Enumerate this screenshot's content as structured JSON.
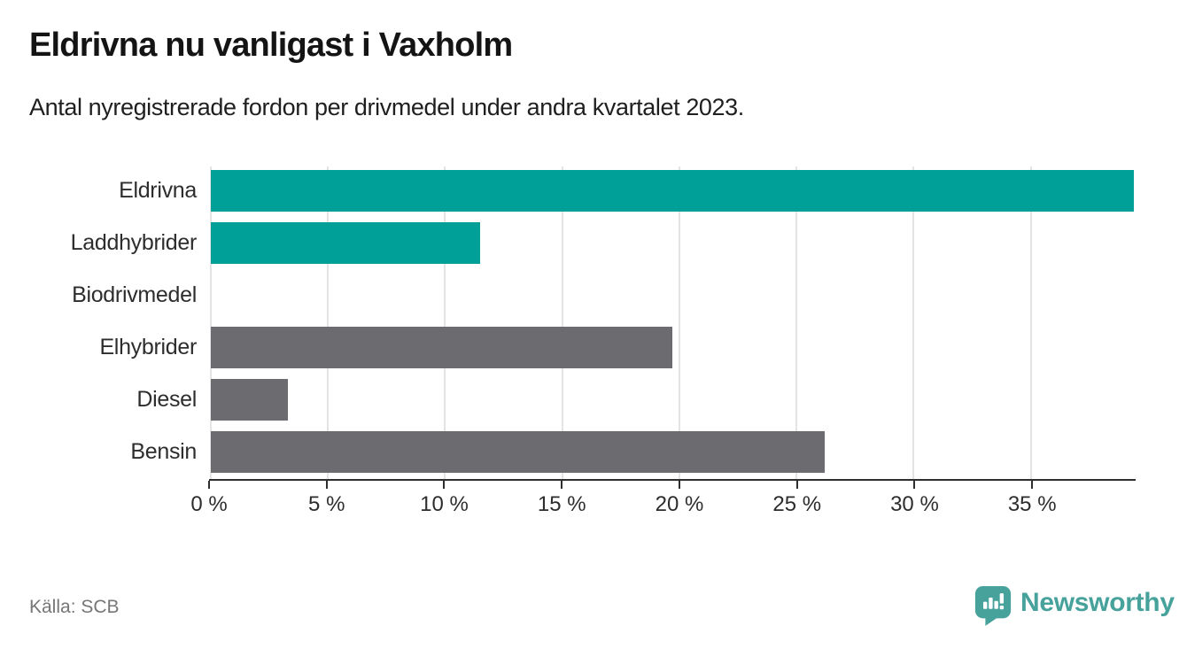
{
  "header": {
    "title": "Eldrivna nu vanligast i Vaxholm",
    "subtitle": "Antal nyregistrerade fordon per drivmedel under andra kvartalet 2023."
  },
  "footer": {
    "source": "Källa: SCB",
    "brand": "Newsworthy"
  },
  "colors": {
    "accent_teal": "#00a098",
    "neutral_gray": "#6b6b70",
    "brand_teal": "#47a29c",
    "gridline": "#e4e4e4",
    "axis": "#2f2f2f",
    "source_text": "#767676"
  },
  "chart_data": {
    "type": "bar",
    "orientation": "horizontal",
    "title": "Eldrivna nu vanligast i Vaxholm",
    "subtitle": "Antal nyregistrerade fordon per drivmedel under andra kvartalet 2023.",
    "categories": [
      "Eldrivna",
      "Laddhybrider",
      "Biodrivmedel",
      "Elhybrider",
      "Diesel",
      "Bensin"
    ],
    "values": [
      39.4,
      11.5,
      0,
      19.7,
      3.3,
      26.2
    ],
    "unit": "%",
    "colors": [
      "#00a098",
      "#00a098",
      "#00a098",
      "#6b6b70",
      "#6b6b70",
      "#6b6b70"
    ],
    "xlabel": "",
    "ylabel": "",
    "xlim": [
      0,
      39.4
    ],
    "ticks": [
      0,
      5,
      10,
      15,
      20,
      25,
      30,
      35
    ],
    "tick_labels": [
      "0 %",
      "5 %",
      "10 %",
      "15 %",
      "20 %",
      "25 %",
      "30 %",
      "35 %"
    ],
    "grid": true,
    "legend": false,
    "source": "Källa: SCB"
  }
}
